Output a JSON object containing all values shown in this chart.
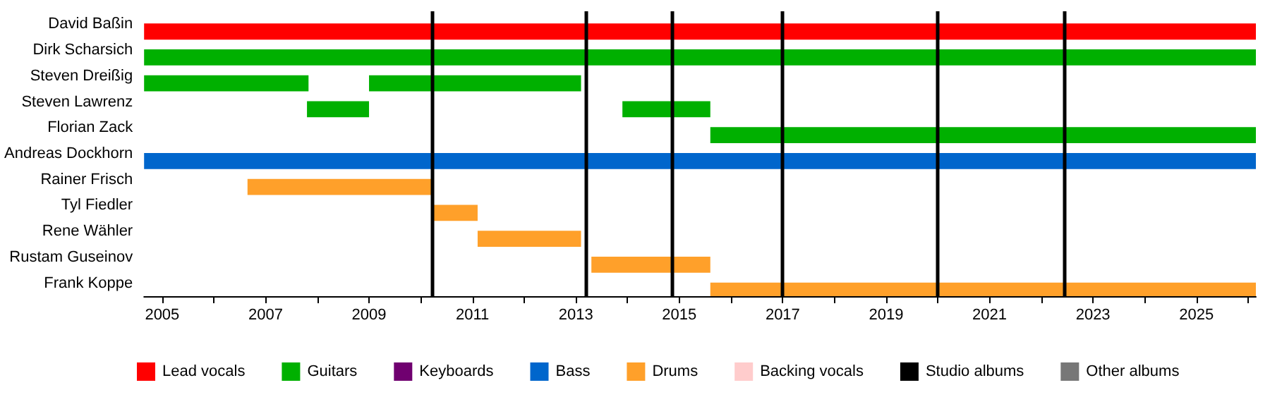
{
  "chart_data": {
    "type": "bar",
    "orientation": "horizontal",
    "categories": [
      "David Baßin",
      "Dirk Scharsich",
      "Steven Dreißig",
      "Steven Lawrenz",
      "Florian Zack",
      "Andreas Dockhorn",
      "Rainer Frisch",
      "Tyl Fiedler",
      "Rene Wähler",
      "Rustam Guseinov",
      "Frank Koppe"
    ],
    "series": [
      {
        "name": "Lead vocals",
        "color": "#ff0000",
        "base": [
          2004.65,
          null,
          null,
          null,
          null,
          null,
          null,
          null,
          null,
          null,
          null
        ],
        "values": [
          21.5,
          null,
          null,
          null,
          null,
          null,
          null,
          null,
          null,
          null,
          null
        ]
      },
      {
        "name": "Guitars",
        "color": "#00b000",
        "base": [
          null,
          2004.65,
          2004.65,
          2007.8,
          2015.6,
          null,
          null,
          null,
          null,
          null,
          null
        ],
        "values": [
          null,
          21.5,
          3.18,
          1.2,
          10.55,
          null,
          null,
          null,
          null,
          null,
          null
        ]
      },
      {
        "color": "#00b000",
        "base": [
          null,
          null,
          2009.0,
          2013.9,
          null,
          null,
          null,
          null,
          null,
          null,
          null
        ],
        "values": [
          null,
          null,
          4.1,
          1.7,
          null,
          null,
          null,
          null,
          null,
          null,
          null
        ]
      },
      {
        "name": "Keyboards",
        "color": "#700070",
        "values": [
          null,
          null,
          null,
          null,
          null,
          null,
          null,
          null,
          null,
          null,
          null
        ]
      },
      {
        "name": "Bass",
        "color": "#0066cc",
        "base": [
          null,
          null,
          null,
          null,
          null,
          2004.65,
          null,
          null,
          null,
          null,
          null
        ],
        "values": [
          null,
          null,
          null,
          null,
          null,
          21.5,
          null,
          null,
          null,
          null,
          null
        ]
      },
      {
        "name": "Drums",
        "color": "#ffa02a",
        "base": [
          null,
          null,
          null,
          null,
          null,
          null,
          2006.65,
          2010.25,
          2011.1,
          2013.3,
          2015.6
        ],
        "values": [
          null,
          null,
          null,
          null,
          null,
          null,
          3.6,
          0.85,
          2.0,
          2.3,
          10.55
        ]
      },
      {
        "name": "Backing vocals",
        "color": "#ffcccc",
        "values": [
          null,
          null,
          null,
          null,
          null,
          null,
          null,
          null,
          null,
          null,
          null
        ]
      },
      {
        "name": "Studio albums",
        "color": "#000000",
        "values": [
          null,
          null,
          null,
          null,
          null,
          null,
          null,
          null,
          null,
          null,
          null
        ]
      },
      {
        "name": "Other albums",
        "color": "#777777",
        "values": [
          null,
          null,
          null,
          null,
          null,
          null,
          null,
          null,
          null,
          null,
          null
        ]
      }
    ],
    "ref_lines": [
      {
        "axis": "x",
        "value": 2010.23,
        "color": "#000000"
      },
      {
        "axis": "x",
        "value": 2013.2,
        "color": "#000000"
      },
      {
        "axis": "x",
        "value": 2014.85,
        "color": "#000000"
      },
      {
        "axis": "x",
        "value": 2017.0,
        "color": "#000000"
      },
      {
        "axis": "x",
        "value": 2020.0,
        "color": "#000000"
      },
      {
        "axis": "x",
        "value": 2022.45,
        "color": "#000000"
      }
    ],
    "xlim": [
      2004.65,
      2026.15
    ],
    "xticks": [
      2005,
      {
        "value": 2006,
        "label": null
      },
      2007,
      {
        "value": 2008,
        "label": null
      },
      2009,
      {
        "value": 2010,
        "label": null
      },
      2011,
      {
        "value": 2012,
        "label": null
      },
      2013,
      {
        "value": 2014,
        "label": null
      },
      2015,
      {
        "value": 2016,
        "label": null
      },
      2017,
      {
        "value": 2018,
        "label": null
      },
      2019,
      {
        "value": 2020,
        "label": null
      },
      2021,
      {
        "value": 2022,
        "label": null
      },
      2023,
      {
        "value": 2024,
        "label": null
      },
      2025,
      {
        "value": 2026,
        "label": null
      }
    ],
    "legend": "bottom",
    "grid": false
  }
}
